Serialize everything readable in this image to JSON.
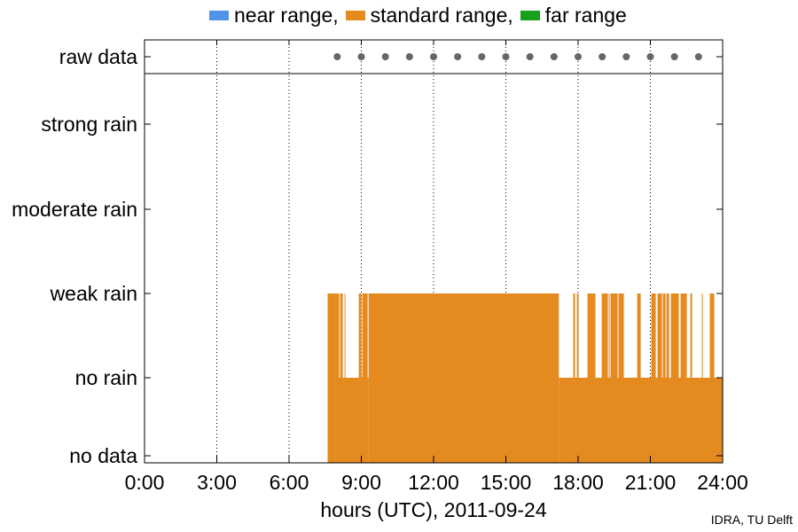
{
  "chart_data": {
    "type": "bar",
    "title": "",
    "xlabel": "hours (UTC), 2011-09-24",
    "ylabel": "",
    "xlim": [
      0,
      24
    ],
    "x_ticks": [
      0,
      3,
      6,
      9,
      12,
      15,
      18,
      21,
      24
    ],
    "x_tick_labels": [
      "0:00",
      "3:00",
      "6:00",
      "9:00",
      "12:00",
      "15:00",
      "18:00",
      "21:00",
      "24:00"
    ],
    "y_categories": [
      "no data",
      "no rain",
      "weak rain",
      "moderate rain",
      "strong rain",
      "raw data"
    ],
    "grid": "vertical dotted",
    "legend_position": "top",
    "series": [
      {
        "name": "near range",
        "color": "#4f94e8",
        "segments": []
      },
      {
        "name": "standard range",
        "color": "#e48a1f",
        "segments": [
          {
            "start": 7.6,
            "end": 7.9,
            "level": "weak rain"
          },
          {
            "start": 7.9,
            "end": 9.3,
            "level": "mixed weak rain / no rain"
          },
          {
            "start": 9.3,
            "end": 17.2,
            "level": "weak rain"
          },
          {
            "start": 17.2,
            "end": 17.8,
            "level": "no rain"
          },
          {
            "start": 17.8,
            "end": 24.0,
            "level": "mixed weak rain / no rain"
          }
        ]
      },
      {
        "name": "far range",
        "color": "#17a01a",
        "segments": []
      }
    ],
    "raw_data_hours": [
      8,
      9,
      10,
      11,
      12,
      13,
      14,
      15,
      16,
      17,
      18,
      19,
      20,
      21,
      22,
      23
    ]
  },
  "legend": {
    "near": "near range,",
    "standard": "standard range,",
    "far": "far range"
  },
  "credit": "IDRA, TU Delft",
  "colors": {
    "near": "#4f94e8",
    "standard": "#e48a1f",
    "far": "#17a01a",
    "raw_dot": "#666666"
  }
}
